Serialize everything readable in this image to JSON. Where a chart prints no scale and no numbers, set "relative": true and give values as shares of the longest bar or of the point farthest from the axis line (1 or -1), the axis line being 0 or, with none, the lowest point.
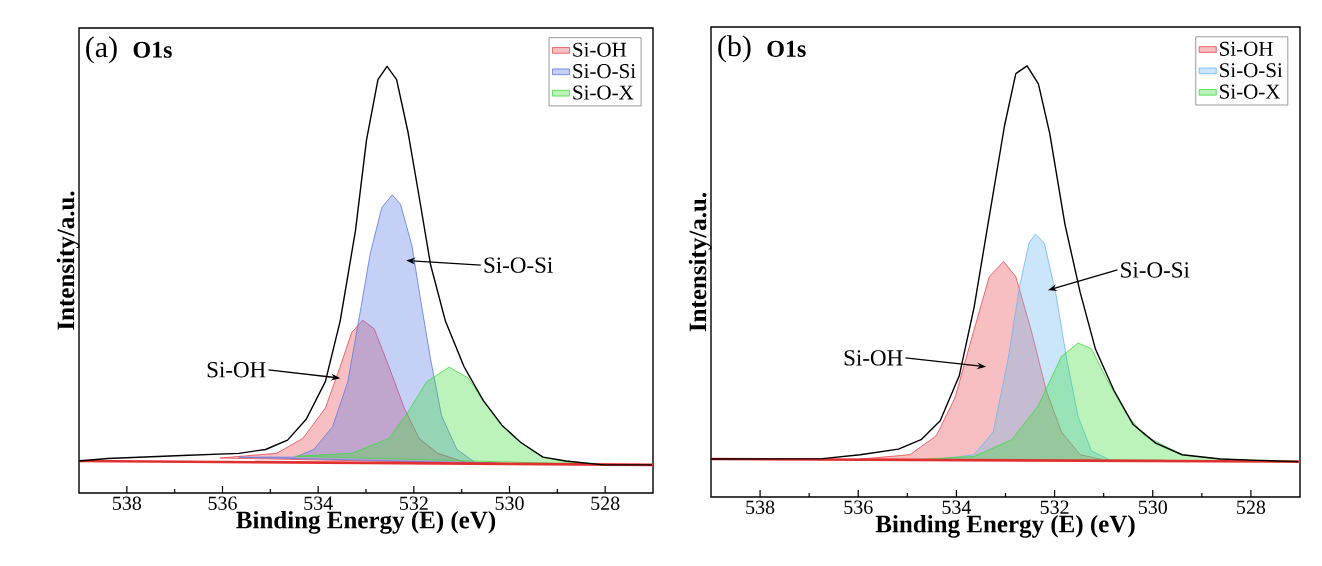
{
  "chart_data": [
    {
      "type": "line",
      "title": "(a)",
      "subtitle": "O1s",
      "xlabel": "Binding Energy (E) (eV)",
      "ylabel": "Intensity/a.u.",
      "relative": true,
      "xlim": [
        539,
        527
      ],
      "xticks": [
        538,
        536,
        534,
        532,
        530,
        528
      ],
      "legend": "top right",
      "annotations": [
        "Si-O-Si",
        "Si-OH"
      ],
      "series": [
        {
          "type": "area",
          "name": "Si-OH",
          "color": "#e8484c",
          "x": [
            536.05,
            534.87,
            534.32,
            533.85,
            533.54,
            533.3,
            533.07,
            532.83,
            532.52,
            532.2,
            531.89,
            531.5,
            530.95,
            529.77
          ],
          "values": [
            0.082,
            0.093,
            0.128,
            0.199,
            0.296,
            0.376,
            0.405,
            0.385,
            0.296,
            0.199,
            0.128,
            0.093,
            0.073,
            0.068
          ]
        },
        {
          "type": "area",
          "name": "Si-O-Si",
          "color": "#5a78e6",
          "x": [
            535.66,
            534.48,
            534.09,
            533.7,
            533.38,
            533.1,
            532.91,
            532.67,
            532.45,
            532.28,
            532.04,
            531.85,
            531.65,
            531.42,
            531.1,
            530.71,
            529.77
          ],
          "values": [
            0.084,
            0.084,
            0.102,
            0.155,
            0.261,
            0.438,
            0.562,
            0.669,
            0.699,
            0.677,
            0.58,
            0.447,
            0.314,
            0.181,
            0.102,
            0.071,
            0.068
          ]
        },
        {
          "type": "area",
          "name": "Si-O-X",
          "color": "#3ddc3d",
          "x": [
            534.48,
            533.3,
            532.52,
            532.12,
            531.73,
            531.26,
            530.87,
            530.55,
            530.16,
            529.77,
            529.3,
            528.82,
            527.8
          ],
          "values": [
            0.086,
            0.093,
            0.128,
            0.19,
            0.261,
            0.295,
            0.27,
            0.217,
            0.159,
            0.119,
            0.084,
            0.073,
            0.066
          ]
        },
        {
          "color": "#e03030",
          "x": [
            539,
            527
          ],
          "values": [
            0.075,
            0.066
          ]
        },
        {
          "color": "#000000",
          "x": [
            539,
            538.4,
            536.84,
            535.66,
            535.1,
            534.64,
            534.25,
            533.85,
            533.54,
            533.22,
            532.99,
            532.75,
            532.56,
            532.36,
            532.12,
            531.89,
            531.65,
            531.34,
            530.95,
            530.55,
            530.16,
            529.77,
            529.3,
            528.82,
            528.04,
            527.02
          ],
          "values": [
            0.075,
            0.081,
            0.088,
            0.093,
            0.102,
            0.124,
            0.173,
            0.261,
            0.403,
            0.615,
            0.827,
            0.969,
            1.0,
            0.969,
            0.845,
            0.695,
            0.535,
            0.403,
            0.296,
            0.217,
            0.159,
            0.119,
            0.084,
            0.075,
            0.066,
            0.066
          ]
        }
      ]
    },
    {
      "type": "line",
      "title": "(b)",
      "subtitle": "O1s",
      "xlabel": "Binding Energy (E) (eV)",
      "ylabel": "Intensity/a.u.",
      "relative": true,
      "xlim": [
        539,
        527
      ],
      "xticks": [
        538,
        536,
        534,
        532,
        530,
        528
      ],
      "legend": "top right",
      "annotations": [
        "Si-O-Si",
        "Si-OH"
      ],
      "series": [
        {
          "type": "area",
          "name": "Si-OH",
          "color": "#e8484c",
          "x": [
            535.96,
            534.95,
            534.41,
            534.03,
            533.64,
            533.33,
            533.04,
            532.79,
            532.48,
            532.17,
            531.86,
            531.48,
            530.94,
            529.78
          ],
          "values": [
            0.088,
            0.098,
            0.142,
            0.23,
            0.388,
            0.511,
            0.546,
            0.511,
            0.388,
            0.247,
            0.151,
            0.098,
            0.085,
            0.085
          ]
        },
        {
          "type": "area",
          "name": "Si-O-Si",
          "color": "#6ab8f0",
          "x": [
            534.41,
            533.64,
            533.25,
            532.95,
            532.71,
            532.52,
            532.39,
            532.21,
            531.98,
            531.75,
            531.52,
            531.25,
            530.86,
            529.78
          ],
          "values": [
            0.087,
            0.098,
            0.151,
            0.318,
            0.491,
            0.589,
            0.61,
            0.589,
            0.475,
            0.318,
            0.186,
            0.107,
            0.085,
            0.084
          ]
        },
        {
          "type": "area",
          "name": "Si-O-X",
          "color": "#3ddc3d",
          "x": [
            534.8,
            533.64,
            532.87,
            532.33,
            531.86,
            531.52,
            531.25,
            530.94,
            530.55,
            530.17,
            529.4,
            528.62,
            527.47
          ],
          "values": [
            0.087,
            0.094,
            0.133,
            0.212,
            0.326,
            0.357,
            0.344,
            0.274,
            0.195,
            0.142,
            0.098,
            0.088,
            0.084
          ]
        },
        {
          "color": "#e03030",
          "x": [
            539,
            527
          ],
          "values": [
            0.088,
            0.082
          ]
        },
        {
          "color": "#000000",
          "x": [
            539,
            536.73,
            535.96,
            535.18,
            534.72,
            534.33,
            533.94,
            533.64,
            533.33,
            533.02,
            532.79,
            532.56,
            532.33,
            532.1,
            531.79,
            531.48,
            531.17,
            530.79,
            530.4,
            529.94,
            529.4,
            528.62,
            527.85,
            527.04
          ],
          "values": [
            0.088,
            0.089,
            0.098,
            0.111,
            0.133,
            0.177,
            0.282,
            0.44,
            0.651,
            0.861,
            0.982,
            1.0,
            0.958,
            0.844,
            0.633,
            0.475,
            0.344,
            0.247,
            0.168,
            0.125,
            0.098,
            0.088,
            0.085,
            0.082
          ]
        }
      ]
    }
  ]
}
